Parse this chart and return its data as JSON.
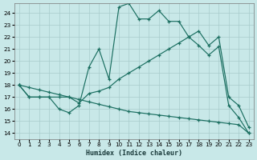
{
  "xlabel": "Humidex (Indice chaleur)",
  "background_color": "#c8e8e8",
  "line_color": "#1a6e60",
  "grid_color": "#a8cccc",
  "xlim": [
    -0.5,
    23.5
  ],
  "ylim": [
    13.5,
    24.8
  ],
  "xticks": [
    0,
    1,
    2,
    3,
    4,
    5,
    6,
    7,
    8,
    9,
    10,
    11,
    12,
    13,
    14,
    15,
    16,
    17,
    18,
    19,
    20,
    21,
    22,
    23
  ],
  "yticks": [
    14,
    15,
    16,
    17,
    18,
    19,
    20,
    21,
    22,
    23,
    24
  ],
  "line1_x": [
    0,
    1,
    2,
    3,
    4,
    5,
    6,
    7,
    8,
    9,
    10,
    11,
    12,
    13,
    14,
    15,
    16,
    17,
    18,
    19,
    20,
    21,
    22,
    23
  ],
  "line1_y": [
    18,
    17,
    17,
    17,
    16,
    15.7,
    16.3,
    19.5,
    21,
    18.5,
    24.5,
    24.8,
    23.5,
    23.5,
    24.2,
    23.3,
    23.3,
    22,
    21.3,
    20.5,
    21.2,
    16.3,
    15.3,
    14
  ],
  "line2_x": [
    0,
    1,
    2,
    3,
    4,
    5,
    6,
    7,
    8,
    9,
    10,
    11,
    12,
    13,
    14,
    15,
    16,
    17,
    18,
    19,
    20,
    21,
    22,
    23
  ],
  "line2_y": [
    18,
    17,
    17,
    17,
    17,
    17,
    16.5,
    17.3,
    17.5,
    17.8,
    18.5,
    19.0,
    19.5,
    20.0,
    20.5,
    21.0,
    21.5,
    22.0,
    22.5,
    21.3,
    22,
    17,
    16.3,
    14.5
  ],
  "line3_x": [
    0,
    1,
    2,
    3,
    4,
    5,
    6,
    7,
    8,
    9,
    10,
    11,
    12,
    13,
    14,
    15,
    16,
    17,
    18,
    19,
    20,
    21,
    22,
    23
  ],
  "line3_y": [
    18,
    17.8,
    17.6,
    17.4,
    17.2,
    17.0,
    16.8,
    16.6,
    16.4,
    16.2,
    16.0,
    15.8,
    15.7,
    15.6,
    15.5,
    15.4,
    15.3,
    15.2,
    15.1,
    15.0,
    14.9,
    14.8,
    14.7,
    14.0
  ]
}
